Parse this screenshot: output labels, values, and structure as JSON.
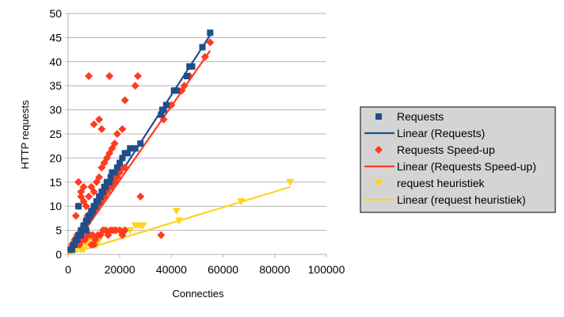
{
  "chart_data": {
    "type": "scatter",
    "title": "",
    "xlabel": "Connecties",
    "ylabel": "HTTP requests",
    "xlim": [
      0,
      100000
    ],
    "ylim": [
      0,
      50
    ],
    "x_ticks": [
      "0",
      "20000",
      "40000",
      "60000",
      "80000",
      "100000"
    ],
    "y_ticks": [
      "0",
      "5",
      "10",
      "15",
      "20",
      "25",
      "30",
      "35",
      "40",
      "45",
      "50"
    ],
    "grid": "horizontal",
    "legend_position": "right",
    "series": [
      {
        "name": "Requests",
        "marker": "square",
        "color": "#1f4e8c",
        "points": [
          [
            1000,
            1
          ],
          [
            1500,
            1
          ],
          [
            2000,
            2
          ],
          [
            2500,
            2
          ],
          [
            3000,
            3
          ],
          [
            3500,
            3
          ],
          [
            4000,
            4
          ],
          [
            4500,
            4
          ],
          [
            5000,
            5
          ],
          [
            5500,
            5
          ],
          [
            6000,
            6
          ],
          [
            6500,
            6
          ],
          [
            7000,
            7
          ],
          [
            7500,
            7
          ],
          [
            8000,
            8
          ],
          [
            8500,
            8
          ],
          [
            9000,
            9
          ],
          [
            9500,
            9
          ],
          [
            10000,
            10
          ],
          [
            10500,
            10
          ],
          [
            11000,
            11
          ],
          [
            11500,
            11
          ],
          [
            12000,
            12
          ],
          [
            12500,
            12
          ],
          [
            13000,
            13
          ],
          [
            13500,
            13
          ],
          [
            14000,
            14
          ],
          [
            14500,
            14
          ],
          [
            15000,
            15
          ],
          [
            16000,
            15
          ],
          [
            16500,
            16
          ],
          [
            17000,
            17
          ],
          [
            18000,
            17
          ],
          [
            19000,
            18
          ],
          [
            20000,
            19
          ],
          [
            21000,
            20
          ],
          [
            22000,
            21
          ],
          [
            23000,
            21
          ],
          [
            24000,
            22
          ],
          [
            26000,
            22
          ],
          [
            28000,
            23
          ],
          [
            4000,
            10
          ],
          [
            5000,
            4
          ],
          [
            7000,
            5
          ],
          [
            36000,
            29
          ],
          [
            36500,
            30
          ],
          [
            37000,
            30
          ],
          [
            38000,
            31
          ],
          [
            41000,
            34
          ],
          [
            42000,
            34
          ],
          [
            46000,
            37
          ],
          [
            47000,
            39
          ],
          [
            48000,
            39
          ],
          [
            52000,
            43
          ],
          [
            55000,
            46
          ]
        ]
      },
      {
        "name": "Linear (Requests)",
        "type": "line",
        "color": "#1f4e8c",
        "x": [
          0,
          55000
        ],
        "y": [
          0,
          45.5
        ]
      },
      {
        "name": "Requests Speed-up",
        "marker": "diamond",
        "color": "#ff3b1f",
        "points": [
          [
            1000,
            1
          ],
          [
            1500,
            2
          ],
          [
            2000,
            2
          ],
          [
            2500,
            3
          ],
          [
            3000,
            3
          ],
          [
            3500,
            4
          ],
          [
            4000,
            4
          ],
          [
            4500,
            4
          ],
          [
            5000,
            5
          ],
          [
            5500,
            5
          ],
          [
            6000,
            6
          ],
          [
            6500,
            6
          ],
          [
            7000,
            7
          ],
          [
            7500,
            8
          ],
          [
            8000,
            8
          ],
          [
            9000,
            9
          ],
          [
            10000,
            9
          ],
          [
            11000,
            10
          ],
          [
            12000,
            11
          ],
          [
            13000,
            11
          ],
          [
            14000,
            12
          ],
          [
            15000,
            13
          ],
          [
            16000,
            14
          ],
          [
            17000,
            14
          ],
          [
            18000,
            15
          ],
          [
            19000,
            16
          ],
          [
            20000,
            17
          ],
          [
            21000,
            18
          ],
          [
            22000,
            18
          ],
          [
            3000,
            8
          ],
          [
            4000,
            10
          ],
          [
            5000,
            12
          ],
          [
            6000,
            14
          ],
          [
            4000,
            15
          ],
          [
            5000,
            13
          ],
          [
            6000,
            11
          ],
          [
            7000,
            10
          ],
          [
            8000,
            12
          ],
          [
            9000,
            14
          ],
          [
            10000,
            13
          ],
          [
            11000,
            15
          ],
          [
            12000,
            16
          ],
          [
            13000,
            18
          ],
          [
            14000,
            19
          ],
          [
            15000,
            20
          ],
          [
            16000,
            21
          ],
          [
            17000,
            22
          ],
          [
            18000,
            23
          ],
          [
            19000,
            25
          ],
          [
            4500,
            2
          ],
          [
            5500,
            3
          ],
          [
            6500,
            3
          ],
          [
            7500,
            4
          ],
          [
            8500,
            4
          ],
          [
            9500,
            4
          ],
          [
            10500,
            3
          ],
          [
            11500,
            4
          ],
          [
            12500,
            4
          ],
          [
            13500,
            5
          ],
          [
            14500,
            5
          ],
          [
            15500,
            4
          ],
          [
            16500,
            5
          ],
          [
            17500,
            5
          ],
          [
            18500,
            5
          ],
          [
            20000,
            5
          ],
          [
            21000,
            4
          ],
          [
            22000,
            5
          ],
          [
            9000,
            2
          ],
          [
            10000,
            2
          ],
          [
            8000,
            37
          ],
          [
            10000,
            27
          ],
          [
            12000,
            28
          ],
          [
            13000,
            26
          ],
          [
            16000,
            37
          ],
          [
            21000,
            26
          ],
          [
            22000,
            32
          ],
          [
            26000,
            35
          ],
          [
            27000,
            37
          ],
          [
            28000,
            12
          ],
          [
            36000,
            4
          ],
          [
            37000,
            28
          ],
          [
            40000,
            31
          ],
          [
            44000,
            34
          ],
          [
            45000,
            35
          ],
          [
            47000,
            37
          ],
          [
            53000,
            41
          ],
          [
            55000,
            44
          ]
        ]
      },
      {
        "name": "Linear (Requests Speed-up)",
        "type": "line",
        "color": "#ff3b1f",
        "x": [
          0,
          55000
        ],
        "y": [
          0,
          42.3
        ]
      },
      {
        "name": "request heuristiek",
        "marker": "triangle-down",
        "color": "#ffd320",
        "points": [
          [
            1000,
            1
          ],
          [
            2000,
            2
          ],
          [
            3000,
            1
          ],
          [
            4000,
            2
          ],
          [
            5000,
            1
          ],
          [
            6000,
            1
          ],
          [
            7000,
            2
          ],
          [
            8000,
            3
          ],
          [
            9000,
            2
          ],
          [
            10000,
            3
          ],
          [
            11000,
            2
          ],
          [
            12000,
            3
          ],
          [
            13000,
            4
          ],
          [
            14000,
            5
          ],
          [
            15000,
            5
          ],
          [
            16000,
            5
          ],
          [
            17000,
            5
          ],
          [
            18000,
            5
          ],
          [
            20000,
            5
          ],
          [
            22000,
            5
          ],
          [
            24000,
            5
          ],
          [
            26000,
            6
          ],
          [
            27000,
            6
          ],
          [
            28000,
            6
          ],
          [
            29000,
            6
          ],
          [
            42000,
            9
          ],
          [
            43000,
            7
          ],
          [
            67000,
            11
          ],
          [
            86000,
            15
          ]
        ]
      },
      {
        "name": "Linear (request heuristiek)",
        "type": "line",
        "color": "#ffd320",
        "x": [
          0,
          86000
        ],
        "y": [
          0,
          14
        ]
      }
    ]
  }
}
